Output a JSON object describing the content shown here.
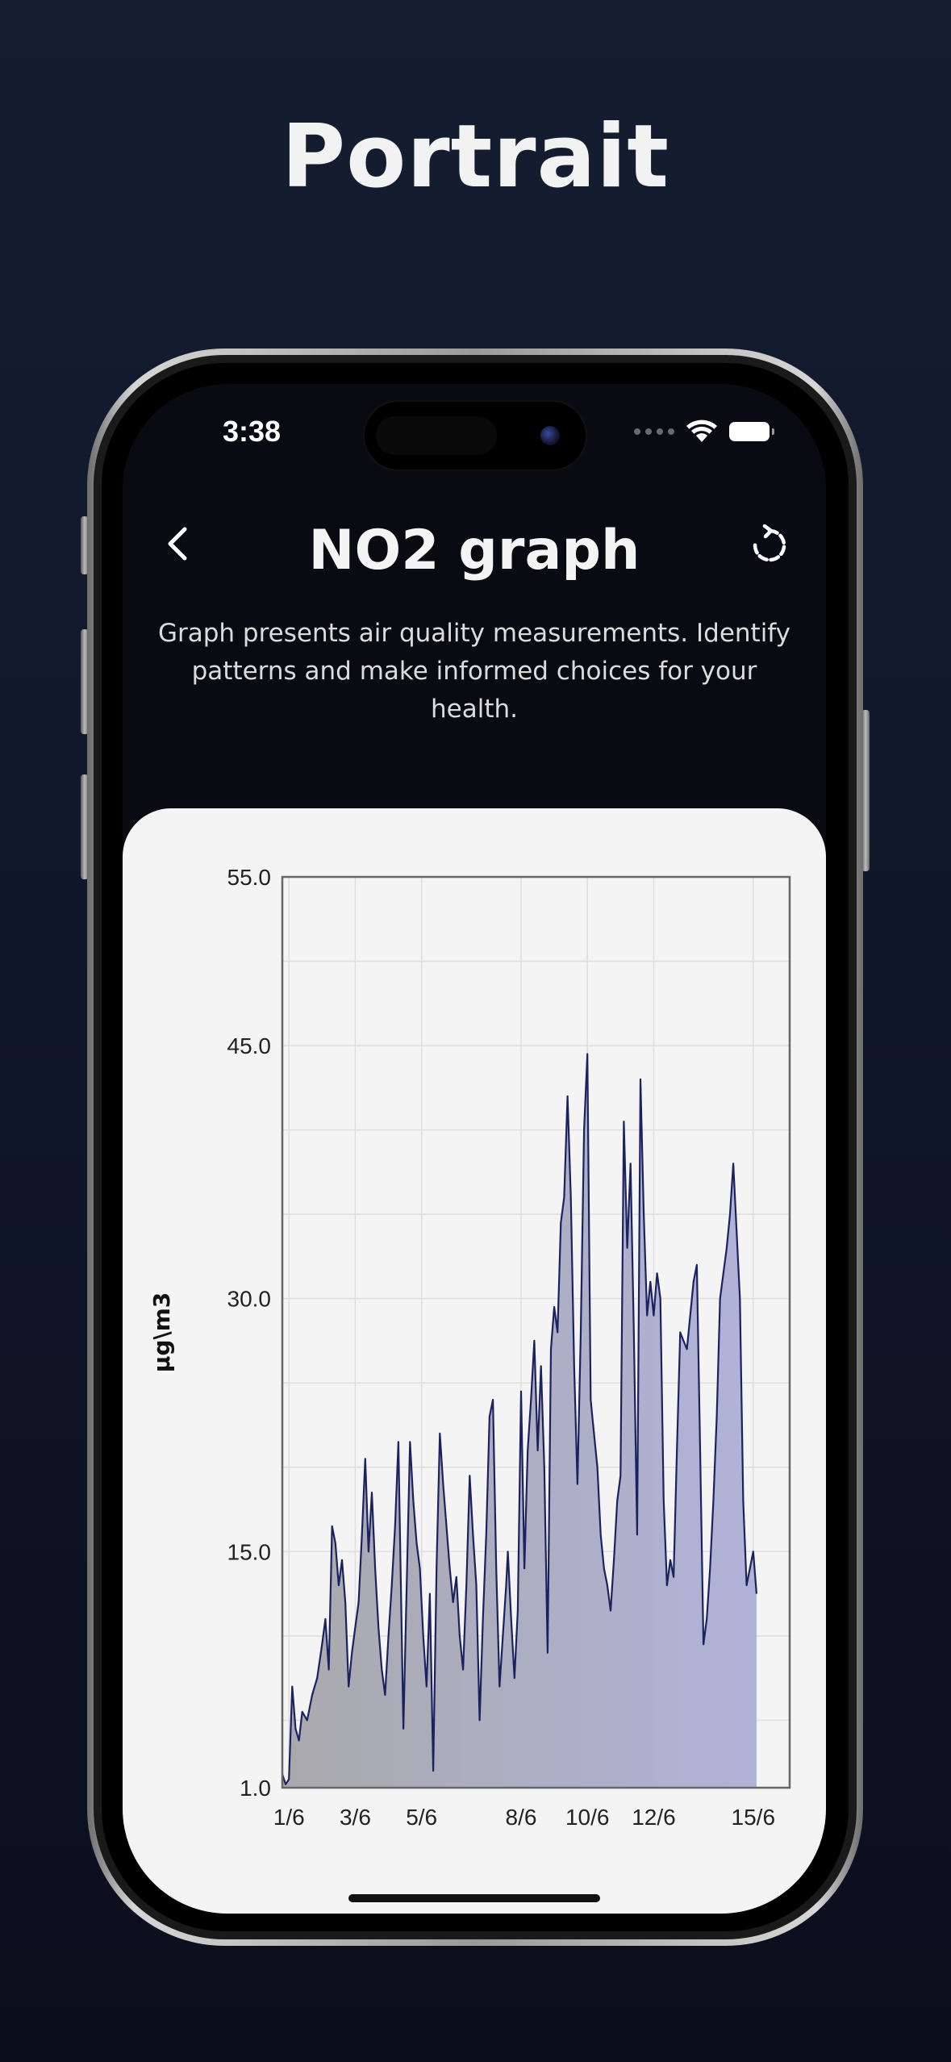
{
  "headline": "Portrait",
  "status_bar": {
    "time": "3:38",
    "icons": [
      "signal-dots-icon",
      "wifi-icon",
      "battery-icon"
    ]
  },
  "header": {
    "title": "NO2 graph",
    "back_icon": "chevron-left-icon",
    "refresh_icon": "refresh-icon"
  },
  "description": "Graph presents air quality measurements. Identify patterns and make informed choices for your health.",
  "colors": {
    "line": "#1c2260",
    "fill_start": "#a9a9ac",
    "fill_end": "#b0b3d8",
    "card": "#f4f4f4",
    "screen_bg": "#0a0b12"
  },
  "chart_data": {
    "type": "area",
    "xlabel": "",
    "ylabel": "µg\\m3",
    "ylim": [
      1.0,
      55.0
    ],
    "y_ticks": [
      1.0,
      15.0,
      30.0,
      45.0,
      55.0
    ],
    "y_tick_labels": [
      "1.0",
      "15.0",
      "30.0",
      "45.0",
      "55.0"
    ],
    "x_range": [
      0.8,
      16.1
    ],
    "x_ticks": [
      1,
      3,
      5,
      8,
      10,
      12,
      15
    ],
    "x_tick_labels": [
      "1/6",
      "3/6",
      "5/6",
      "8/6",
      "10/6",
      "12/6",
      "15/6"
    ],
    "grid": true,
    "series": [
      {
        "points": [
          [
            0.8,
            1.8
          ],
          [
            0.9,
            1.2
          ],
          [
            1.0,
            1.5
          ],
          [
            1.1,
            7.0
          ],
          [
            1.2,
            4.5
          ],
          [
            1.3,
            3.8
          ],
          [
            1.4,
            5.5
          ],
          [
            1.55,
            5.0
          ],
          [
            1.7,
            6.5
          ],
          [
            1.85,
            7.5
          ],
          [
            2.0,
            9.5
          ],
          [
            2.1,
            11.0
          ],
          [
            2.2,
            8.0
          ],
          [
            2.3,
            16.5
          ],
          [
            2.4,
            15.5
          ],
          [
            2.5,
            13.0
          ],
          [
            2.6,
            14.5
          ],
          [
            2.7,
            12.0
          ],
          [
            2.8,
            7.0
          ],
          [
            2.9,
            9.0
          ],
          [
            3.0,
            10.5
          ],
          [
            3.1,
            12.0
          ],
          [
            3.2,
            16.0
          ],
          [
            3.3,
            20.5
          ],
          [
            3.4,
            15.0
          ],
          [
            3.5,
            18.5
          ],
          [
            3.6,
            14.0
          ],
          [
            3.7,
            10.5
          ],
          [
            3.8,
            8.0
          ],
          [
            3.9,
            6.5
          ],
          [
            4.0,
            10.0
          ],
          [
            4.1,
            13.0
          ],
          [
            4.2,
            16.5
          ],
          [
            4.3,
            21.5
          ],
          [
            4.35,
            16.0
          ],
          [
            4.45,
            4.5
          ],
          [
            4.55,
            13.0
          ],
          [
            4.65,
            21.5
          ],
          [
            4.75,
            18.0
          ],
          [
            4.85,
            15.5
          ],
          [
            4.95,
            14.0
          ],
          [
            5.05,
            10.0
          ],
          [
            5.15,
            7.0
          ],
          [
            5.25,
            12.5
          ],
          [
            5.35,
            2.0
          ],
          [
            5.45,
            14.0
          ],
          [
            5.55,
            22.0
          ],
          [
            5.65,
            19.0
          ],
          [
            5.75,
            16.5
          ],
          [
            5.85,
            14.0
          ],
          [
            5.95,
            12.0
          ],
          [
            6.05,
            13.5
          ],
          [
            6.15,
            10.0
          ],
          [
            6.25,
            8.0
          ],
          [
            6.35,
            13.0
          ],
          [
            6.45,
            19.5
          ],
          [
            6.55,
            16.0
          ],
          [
            6.65,
            13.0
          ],
          [
            6.75,
            5.0
          ],
          [
            6.85,
            11.0
          ],
          [
            6.95,
            16.0
          ],
          [
            7.05,
            23.0
          ],
          [
            7.15,
            24.0
          ],
          [
            7.25,
            14.0
          ],
          [
            7.35,
            7.0
          ],
          [
            7.45,
            10.0
          ],
          [
            7.55,
            13.0
          ],
          [
            7.6,
            15.0
          ],
          [
            7.7,
            11.0
          ],
          [
            7.8,
            7.5
          ],
          [
            7.9,
            11.5
          ],
          [
            8.0,
            24.5
          ],
          [
            8.1,
            14.0
          ],
          [
            8.2,
            21.0
          ],
          [
            8.3,
            24.0
          ],
          [
            8.4,
            27.5
          ],
          [
            8.5,
            21.0
          ],
          [
            8.6,
            26.0
          ],
          [
            8.7,
            20.0
          ],
          [
            8.8,
            9.0
          ],
          [
            8.9,
            27.0
          ],
          [
            9.0,
            29.5
          ],
          [
            9.1,
            28.0
          ],
          [
            9.2,
            34.5
          ],
          [
            9.3,
            36.0
          ],
          [
            9.4,
            42.0
          ],
          [
            9.5,
            36.0
          ],
          [
            9.6,
            26.0
          ],
          [
            9.7,
            19.0
          ],
          [
            9.8,
            28.0
          ],
          [
            9.9,
            40.0
          ],
          [
            10.0,
            44.5
          ],
          [
            10.1,
            24.0
          ],
          [
            10.2,
            22.0
          ],
          [
            10.3,
            20.0
          ],
          [
            10.4,
            16.0
          ],
          [
            10.5,
            14.0
          ],
          [
            10.6,
            13.0
          ],
          [
            10.7,
            11.5
          ],
          [
            10.8,
            14.5
          ],
          [
            10.9,
            18.0
          ],
          [
            11.0,
            19.5
          ],
          [
            11.1,
            40.5
          ],
          [
            11.2,
            33.0
          ],
          [
            11.3,
            38.0
          ],
          [
            11.4,
            28.0
          ],
          [
            11.5,
            16.0
          ],
          [
            11.6,
            43.0
          ],
          [
            11.7,
            35.0
          ],
          [
            11.8,
            29.0
          ],
          [
            11.9,
            31.0
          ],
          [
            12.0,
            29.0
          ],
          [
            12.1,
            31.5
          ],
          [
            12.2,
            30.0
          ],
          [
            12.3,
            18.0
          ],
          [
            12.4,
            13.0
          ],
          [
            12.5,
            14.5
          ],
          [
            12.6,
            13.5
          ],
          [
            12.7,
            21.0
          ],
          [
            12.8,
            28.0
          ],
          [
            12.9,
            27.5
          ],
          [
            13.0,
            27.0
          ],
          [
            13.1,
            29.0
          ],
          [
            13.2,
            31.0
          ],
          [
            13.3,
            32.0
          ],
          [
            13.4,
            21.0
          ],
          [
            13.5,
            9.5
          ],
          [
            13.6,
            11.0
          ],
          [
            13.7,
            14.0
          ],
          [
            13.8,
            18.0
          ],
          [
            13.9,
            23.0
          ],
          [
            14.0,
            30.0
          ],
          [
            14.1,
            31.5
          ],
          [
            14.2,
            33.0
          ],
          [
            14.3,
            35.0
          ],
          [
            14.4,
            38.0
          ],
          [
            14.5,
            34.0
          ],
          [
            14.6,
            30.0
          ],
          [
            14.7,
            18.0
          ],
          [
            14.8,
            13.0
          ],
          [
            14.9,
            14.0
          ],
          [
            15.0,
            15.0
          ],
          [
            15.1,
            12.5
          ]
        ]
      }
    ]
  }
}
